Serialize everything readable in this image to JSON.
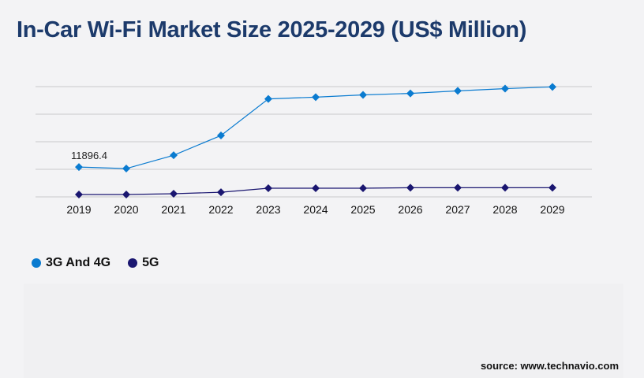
{
  "title": "In-Car Wi-Fi Market Size 2025-2029 (US$ Million)",
  "source": "source: www.technavio.com",
  "chart_data": {
    "type": "line",
    "title": "In-Car Wi-Fi Market Size 2025-2029 (US$ Million)",
    "x": [
      "2019",
      "2020",
      "2021",
      "2022",
      "2023",
      "2024",
      "2025",
      "2026",
      "2027",
      "2028",
      "2029"
    ],
    "ylim": [
      0,
      44000
    ],
    "grid": true,
    "legend_placement": "bottom-left",
    "series": [
      {
        "name": "3G And 4G",
        "color": "#0a7bd0",
        "values": [
          11896.4,
          11300,
          16600,
          24500,
          39100,
          39800,
          40700,
          41300,
          42300,
          43200,
          43900
        ]
      },
      {
        "name": "5G",
        "color": "#1a1670",
        "values": [
          950,
          950,
          1250,
          1850,
          3450,
          3450,
          3450,
          3650,
          3650,
          3650,
          3650
        ]
      }
    ],
    "annotations": [
      {
        "x": "2019",
        "series": "3G And 4G",
        "text": "11896.4"
      }
    ]
  }
}
